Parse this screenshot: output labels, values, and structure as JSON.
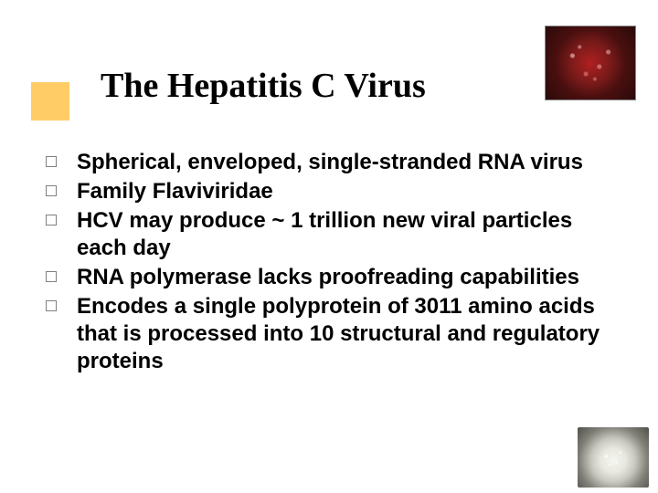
{
  "title": "The Hepatitis C Virus",
  "title_color": "#000000",
  "title_fontsize": 38,
  "accent_color": "#ffcc66",
  "bullet_border_color": "#808080",
  "body_fontsize": 24,
  "body_color": "#000000",
  "corner_image_desc": "hepatitis-c-virus-rendering",
  "bottom_image_desc": "electron-micrograph-virus-particle",
  "bullets": [
    {
      "text": "Spherical, enveloped, single-stranded RNA virus"
    },
    {
      "text": "Family Flaviviridae"
    },
    {
      "text": "HCV may produce ~ 1 trillion new viral particles each day"
    },
    {
      "text": "RNA polymerase lacks proofreading capabilities"
    },
    {
      "text": "Encodes a single polyprotein of 3011 amino acids that is processed into 10 structural and regulatory proteins"
    }
  ]
}
